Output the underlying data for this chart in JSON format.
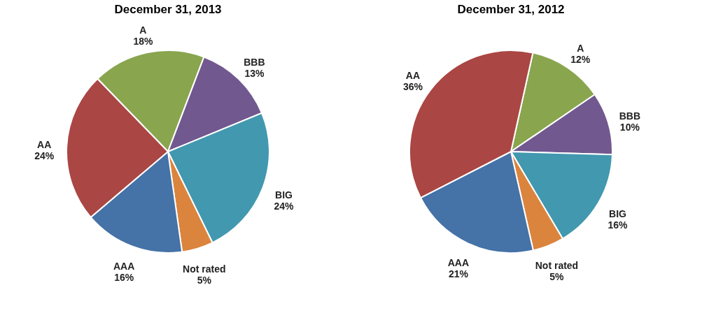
{
  "chart_data": [
    {
      "type": "pie",
      "title": "December 31, 2013",
      "categories": [
        "A",
        "BBB",
        "BIG",
        "Not rated",
        "AAA",
        "AA"
      ],
      "values": [
        18,
        13,
        24,
        5,
        16,
        24
      ],
      "value_labels": [
        "18%",
        "13%",
        "24%",
        "5%",
        "16%",
        "24%"
      ],
      "colors": [
        "#89a54e",
        "#71588f",
        "#4198af",
        "#db843d",
        "#4572a7",
        "#aa4643"
      ],
      "legend": false
    },
    {
      "type": "pie",
      "title": "December 31, 2012",
      "categories": [
        "A",
        "BBB",
        "BIG",
        "Not rated",
        "AAA",
        "AA"
      ],
      "values": [
        12,
        10,
        16,
        5,
        21,
        36
      ],
      "value_labels": [
        "12%",
        "10%",
        "16%",
        "5%",
        "21%",
        "36%"
      ],
      "colors": [
        "#89a54e",
        "#71588f",
        "#4198af",
        "#db843d",
        "#4572a7",
        "#aa4643"
      ],
      "legend": false
    }
  ]
}
